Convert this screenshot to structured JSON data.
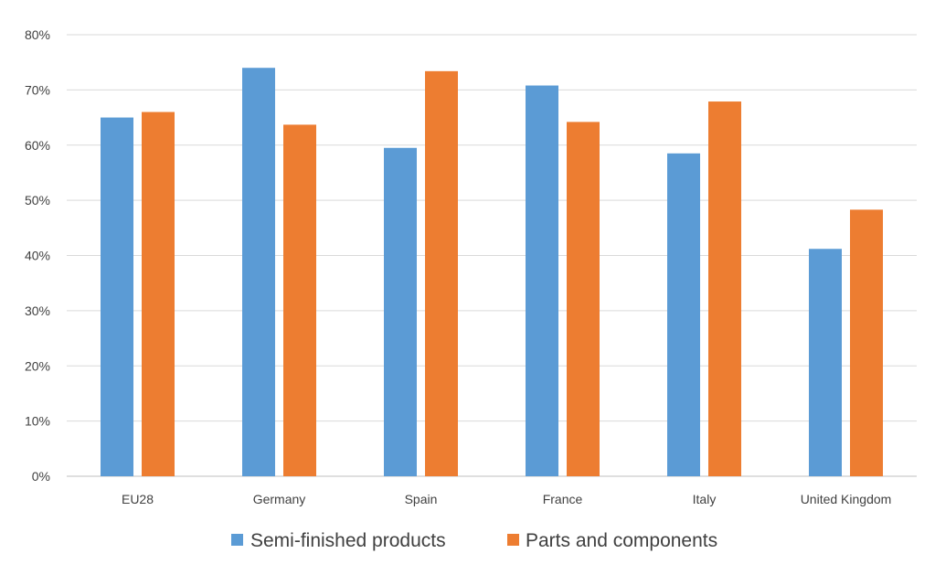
{
  "chart_data": {
    "type": "bar",
    "categories": [
      "EU28",
      "Germany",
      "Spain",
      "France",
      "Italy",
      "United Kingdom"
    ],
    "series": [
      {
        "name": "Semi-finished products",
        "color": "#5b9bd5",
        "values": [
          65,
          74,
          59.5,
          70.8,
          58.5,
          41.2
        ]
      },
      {
        "name": "Parts and components",
        "color": "#ed7d31",
        "values": [
          66,
          63.7,
          73.4,
          64.2,
          67.9,
          48.3
        ]
      }
    ],
    "ylim": [
      0,
      80
    ],
    "yticks": [
      "0%",
      "10%",
      "20%",
      "30%",
      "40%",
      "50%",
      "60%",
      "70%",
      "80%"
    ],
    "grid": true,
    "legend_position": "bottom",
    "title": "",
    "xlabel": "",
    "ylabel": ""
  }
}
